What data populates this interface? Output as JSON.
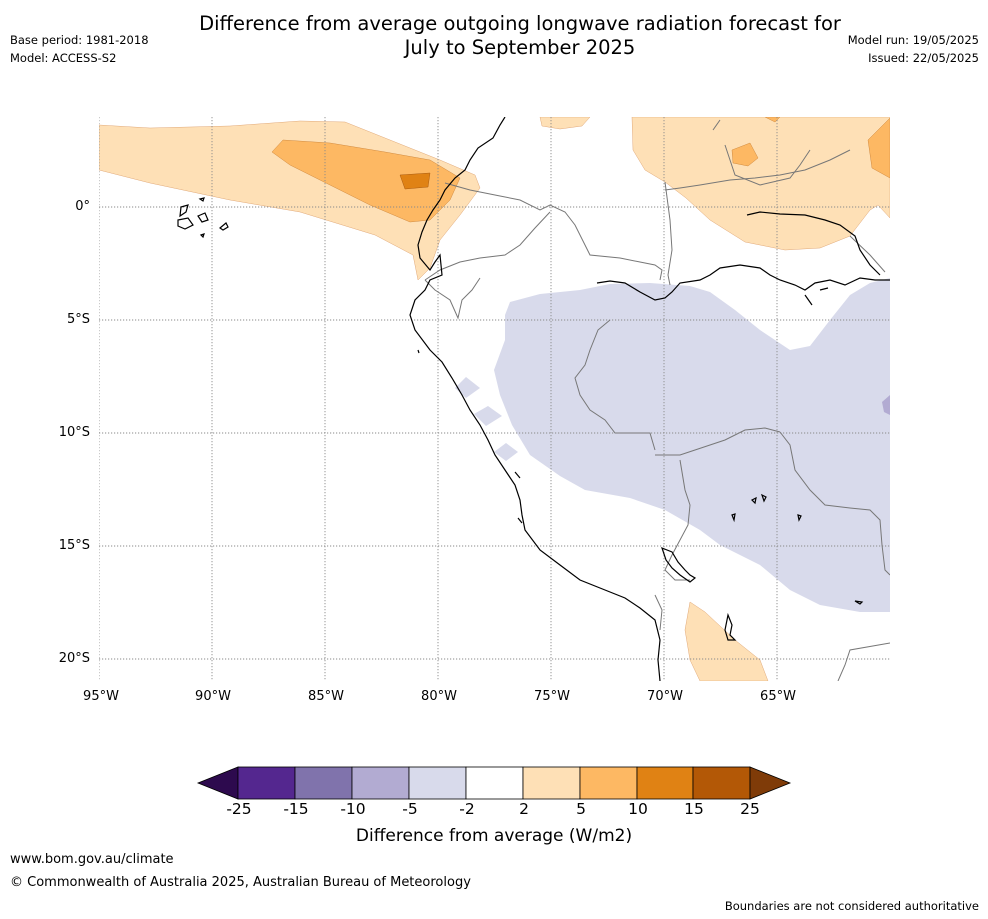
{
  "header": {
    "title_line1": "Difference from average outgoing longwave radiation forecast for",
    "title_line2": "July to September 2025",
    "base_period": "Base period: 1981-2018",
    "model": "Model: ACCESS-S2",
    "model_run": "Model run: 19/05/2025",
    "issued": "Issued: 22/05/2025"
  },
  "map": {
    "lat_labels": [
      "0°",
      "5°S",
      "10°S",
      "15°S",
      "20°S"
    ],
    "lon_labels": [
      "95°W",
      "90°W",
      "85°W",
      "80°W",
      "75°W",
      "70°W",
      "65°W"
    ],
    "gridline_style": "dotted",
    "coastline_color": "#000000",
    "border_color": "#777777"
  },
  "colorbar": {
    "title": "Difference from average (W/m2)",
    "tick_labels": [
      "-25",
      "-15",
      "-10",
      "-5",
      "-2",
      "2",
      "5",
      "10",
      "15",
      "25"
    ],
    "colors": {
      "below_min": "#2d0a4e",
      "bins": [
        "#54278f",
        "#8073ac",
        "#b2abd2",
        "#d8daeb",
        "#ffffff",
        "#fee0b6",
        "#fdb863",
        "#e08214",
        "#b35806"
      ],
      "above_max": "#7f3b08"
    }
  },
  "footer": {
    "website": "www.bom.gov.au/climate",
    "copyright": "© Commonwealth of Australia 2025, Australian Bureau of Meteorology",
    "disclaimer": "Boundaries are not considered authoritative"
  }
}
